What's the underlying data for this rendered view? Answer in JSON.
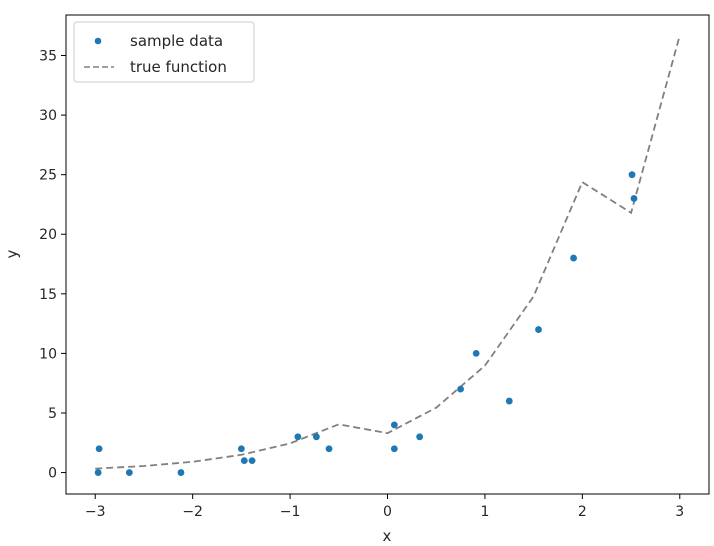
{
  "chart_data": {
    "type": "scatter",
    "title": "",
    "xlabel": "x",
    "ylabel": "y",
    "xlim": [
      -3.3,
      3.3
    ],
    "ylim": [
      -1.8,
      38.4
    ],
    "xticks": [
      -3,
      -2,
      -1,
      0,
      1,
      2,
      3
    ],
    "xtick_labels": [
      "−3",
      "−2",
      "−1",
      "0",
      "1",
      "2",
      "3"
    ],
    "yticks": [
      0,
      5,
      10,
      15,
      20,
      25,
      30,
      35
    ],
    "ytick_labels": [
      "0",
      "5",
      "10",
      "15",
      "20",
      "25",
      "30",
      "35"
    ],
    "grid": false,
    "legend_position": "top-left",
    "series": [
      {
        "name": "sample data",
        "kind": "scatter",
        "color": "#1f77b4",
        "points": [
          {
            "x": -2.97,
            "y": 0
          },
          {
            "x": -2.96,
            "y": 2
          },
          {
            "x": -2.65,
            "y": 0
          },
          {
            "x": -2.12,
            "y": 0
          },
          {
            "x": -1.5,
            "y": 2
          },
          {
            "x": -1.47,
            "y": 1
          },
          {
            "x": -1.39,
            "y": 1
          },
          {
            "x": -0.92,
            "y": 3
          },
          {
            "x": -0.73,
            "y": 3
          },
          {
            "x": -0.6,
            "y": 2
          },
          {
            "x": 0.07,
            "y": 4
          },
          {
            "x": 0.07,
            "y": 2
          },
          {
            "x": 0.33,
            "y": 3
          },
          {
            "x": 0.75,
            "y": 7
          },
          {
            "x": 0.91,
            "y": 10
          },
          {
            "x": 1.25,
            "y": 6
          },
          {
            "x": 1.55,
            "y": 12
          },
          {
            "x": 1.91,
            "y": 18
          },
          {
            "x": 2.51,
            "y": 25
          },
          {
            "x": 2.53,
            "y": 23
          }
        ]
      },
      {
        "name": "true function",
        "kind": "line",
        "style": "dashed",
        "color": "#808080",
        "x": [
          -3,
          -2.5,
          -2,
          -1.5,
          -1,
          -0.5,
          0,
          0.5,
          1,
          1.5,
          2,
          2.5,
          3
        ],
        "y": [
          0.33,
          0.55,
          0.9,
          1.49,
          2.45,
          4.05,
          3.3,
          5.44,
          8.97,
          14.79,
          24.38,
          21.8,
          36.7
        ]
      }
    ]
  }
}
